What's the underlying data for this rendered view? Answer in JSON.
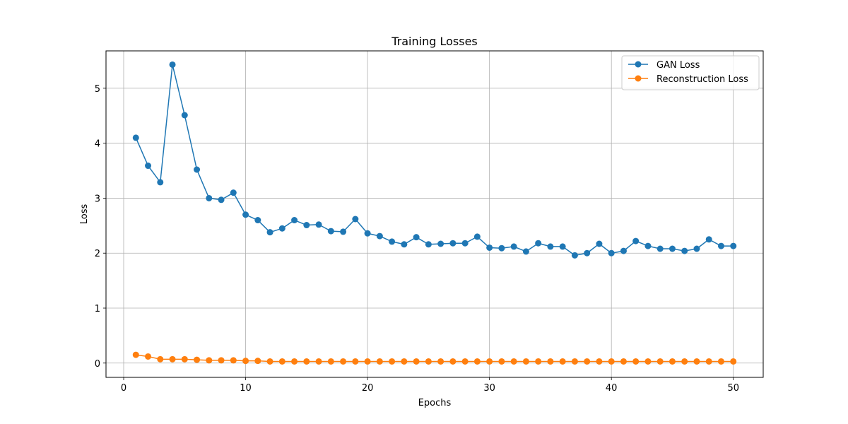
{
  "chart_data": {
    "type": "line",
    "title": "Training Losses",
    "xlabel": "Epochs",
    "ylabel": "Loss",
    "xlim": [
      -1.45,
      52.45
    ],
    "ylim": [
      -0.26,
      5.68
    ],
    "xticks": [
      0,
      10,
      20,
      30,
      40,
      50
    ],
    "yticks": [
      0,
      1,
      2,
      3,
      4,
      5
    ],
    "grid": true,
    "legend_position": "top-right",
    "x": [
      1,
      2,
      3,
      4,
      5,
      6,
      7,
      8,
      9,
      10,
      11,
      12,
      13,
      14,
      15,
      16,
      17,
      18,
      19,
      20,
      21,
      22,
      23,
      24,
      25,
      26,
      27,
      28,
      29,
      30,
      31,
      32,
      33,
      34,
      35,
      36,
      37,
      38,
      39,
      40,
      41,
      42,
      43,
      44,
      45,
      46,
      47,
      48,
      49,
      50
    ],
    "series": [
      {
        "name": "GAN Loss",
        "color": "#1f77b4",
        "values": [
          4.1,
          3.59,
          3.29,
          5.43,
          4.51,
          3.52,
          3.0,
          2.97,
          3.1,
          2.7,
          2.6,
          2.38,
          2.45,
          2.6,
          2.51,
          2.52,
          2.4,
          2.39,
          2.62,
          2.36,
          2.31,
          2.21,
          2.16,
          2.29,
          2.16,
          2.17,
          2.18,
          2.18,
          2.3,
          2.1,
          2.09,
          2.12,
          2.03,
          2.18,
          2.12,
          2.12,
          1.96,
          2.0,
          2.17,
          2.0,
          2.04,
          2.22,
          2.13,
          2.08,
          2.08,
          2.04,
          2.08,
          2.25,
          2.13,
          2.13
        ]
      },
      {
        "name": "Reconstruction Loss",
        "color": "#ff7f0e",
        "values": [
          0.15,
          0.12,
          0.07,
          0.07,
          0.07,
          0.06,
          0.05,
          0.05,
          0.05,
          0.04,
          0.04,
          0.03,
          0.03,
          0.03,
          0.03,
          0.03,
          0.03,
          0.03,
          0.03,
          0.03,
          0.03,
          0.03,
          0.03,
          0.03,
          0.03,
          0.03,
          0.03,
          0.03,
          0.03,
          0.03,
          0.03,
          0.03,
          0.03,
          0.03,
          0.03,
          0.03,
          0.03,
          0.03,
          0.03,
          0.03,
          0.03,
          0.03,
          0.03,
          0.03,
          0.03,
          0.03,
          0.03,
          0.03,
          0.03,
          0.03
        ]
      }
    ]
  }
}
